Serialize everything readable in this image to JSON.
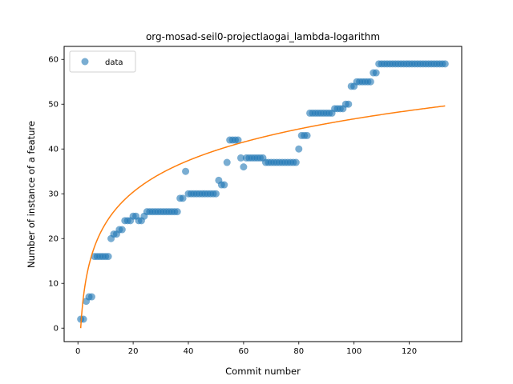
{
  "chart_data": {
    "type": "scatter",
    "title": "org-mosad-seil0-projectlaogai_lambda-logarithm",
    "xlabel": "Commit number",
    "ylabel": "Number of instance of a feature",
    "xlim": [
      -5,
      139
    ],
    "ylim": [
      -3,
      62.9
    ],
    "xticks": [
      0,
      20,
      40,
      60,
      80,
      100,
      120
    ],
    "yticks": [
      0,
      10,
      20,
      30,
      40,
      50,
      60
    ],
    "legend": {
      "position": "upper-left",
      "entries": [
        "data"
      ]
    },
    "colors": {
      "data": "#1f77b4",
      "fit": "#ff7f0e"
    },
    "series": [
      {
        "name": "data",
        "type": "scatter",
        "x": [
          1,
          2,
          3,
          4,
          5,
          6,
          7,
          8,
          9,
          10,
          11,
          12,
          13,
          14,
          15,
          16,
          17,
          18,
          19,
          20,
          21,
          22,
          23,
          24,
          25,
          26,
          27,
          28,
          29,
          30,
          31,
          32,
          33,
          34,
          35,
          36,
          37,
          38,
          39,
          40,
          41,
          42,
          43,
          44,
          45,
          46,
          47,
          48,
          49,
          50,
          51,
          52,
          53,
          54,
          55,
          56,
          57,
          58,
          59,
          60,
          61,
          62,
          63,
          64,
          65,
          66,
          67,
          68,
          69,
          70,
          71,
          72,
          73,
          74,
          75,
          76,
          77,
          78,
          79,
          80,
          81,
          82,
          83,
          84,
          85,
          86,
          87,
          88,
          89,
          90,
          91,
          92,
          93,
          94,
          95,
          96,
          97,
          98,
          99,
          100,
          101,
          102,
          103,
          104,
          105,
          106,
          107,
          108,
          109,
          110,
          111,
          112,
          113,
          114,
          115,
          116,
          117,
          118,
          119,
          120,
          121,
          122,
          123,
          124,
          125,
          126,
          127,
          128,
          129,
          130,
          131,
          132,
          133
        ],
        "y": [
          2,
          2,
          6,
          7,
          7,
          16,
          16,
          16,
          16,
          16,
          16,
          20,
          21,
          21,
          22,
          22,
          24,
          24,
          24,
          25,
          25,
          24,
          24,
          25,
          26,
          26,
          26,
          26,
          26,
          26,
          26,
          26,
          26,
          26,
          26,
          26,
          29,
          29,
          35,
          30,
          30,
          30,
          30,
          30,
          30,
          30,
          30,
          30,
          30,
          30,
          33,
          32,
          32,
          37,
          42,
          42,
          42,
          42,
          38,
          36,
          38,
          38,
          38,
          38,
          38,
          38,
          38,
          37,
          37,
          37,
          37,
          37,
          37,
          37,
          37,
          37,
          37,
          37,
          37,
          40,
          43,
          43,
          43,
          48,
          48,
          48,
          48,
          48,
          48,
          48,
          48,
          48,
          49,
          49,
          49,
          49,
          50,
          50,
          54,
          54,
          55,
          55,
          55,
          55,
          55,
          55,
          57,
          57,
          59,
          59,
          59,
          59,
          59,
          59,
          59,
          59,
          59,
          59,
          59,
          59,
          59,
          59,
          59,
          59,
          59,
          59,
          59,
          59,
          59,
          59,
          59,
          59,
          59
        ]
      },
      {
        "name": "",
        "type": "line",
        "equation": "y = 10.145 * ln(x)",
        "x_range": [
          1,
          133
        ]
      }
    ]
  }
}
